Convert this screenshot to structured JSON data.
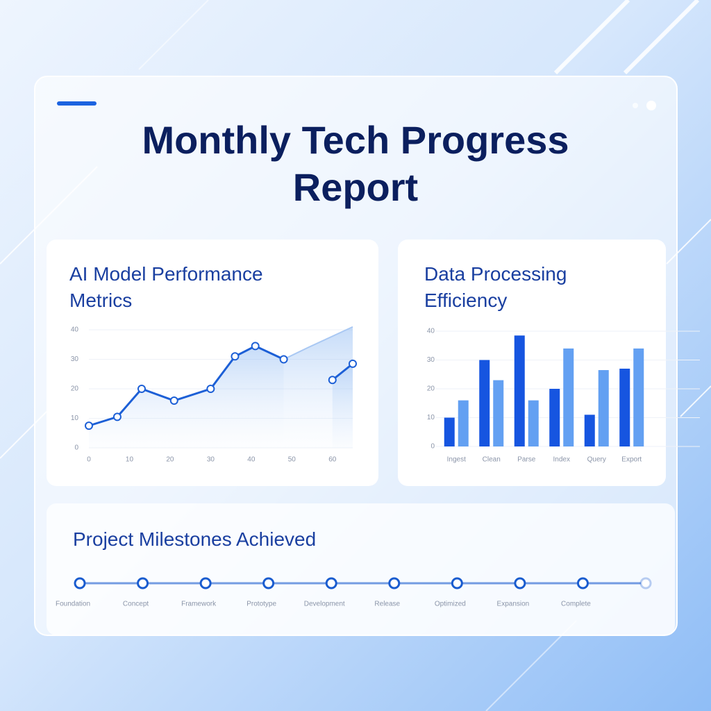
{
  "header": {
    "title": "Monthly Tech Progress Report"
  },
  "chart_data": [
    {
      "type": "line",
      "title": "AI Model Performance Metrics",
      "xlim": [
        0,
        65
      ],
      "xticks": [
        0,
        10,
        20,
        30,
        40,
        50,
        60
      ],
      "ylim": [
        0,
        40
      ],
      "yticks": [
        0,
        10,
        20,
        30,
        40
      ],
      "series": [
        {
          "color": "#1c5fd6",
          "x": [
            0,
            7,
            13,
            21,
            30,
            36,
            41,
            48,
            54,
            60,
            65
          ],
          "values": [
            7.5,
            10.5,
            20,
            16,
            20,
            31,
            34.5,
            30,
            null,
            23,
            28.5
          ]
        },
        {
          "color": "#a9c8f3",
          "x": [
            48,
            54,
            65
          ],
          "values": [
            30,
            34,
            41
          ]
        }
      ]
    },
    {
      "type": "bar",
      "title": "Data Processing Efficiency",
      "categories": [
        "Ingest",
        "Clean",
        "Parse",
        "Index",
        "Query",
        "Export"
      ],
      "ylim": [
        0,
        40
      ],
      "yticks": [
        0,
        10,
        20,
        30,
        40
      ],
      "series": [
        {
          "color": "#1655e0",
          "values": [
            10,
            30,
            38.5,
            20,
            11,
            27
          ]
        },
        {
          "color": "#63a0f2",
          "values": [
            16,
            23,
            16,
            34,
            26.5,
            34
          ]
        }
      ]
    },
    {
      "type": "timeline",
      "title": "Project Milestones Achieved",
      "color": "#1a5ccf",
      "categories": [
        "Foundation",
        "Concept",
        "Framework",
        "Prototype",
        "Development",
        "Release",
        "Optimized",
        "Expansion",
        "Complete",
        null
      ]
    }
  ]
}
